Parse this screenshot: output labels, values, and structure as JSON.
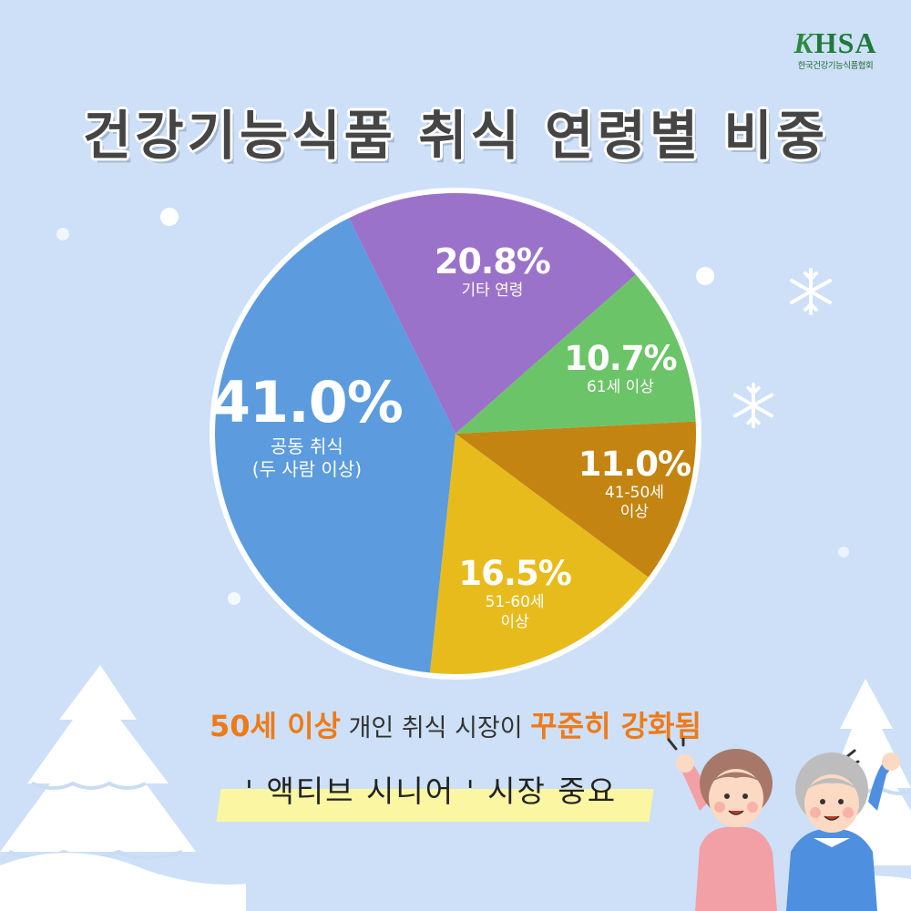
{
  "logo": {
    "main_k": "K",
    "main_rest": "HSA",
    "sub": "한국건강기능식품협회"
  },
  "title": "건강기능식품 취식 연령별 비중",
  "chart_data": {
    "type": "pie",
    "title": "건강기능식품 취식 연령별 비중",
    "slices": [
      {
        "label": "기타 연령",
        "value": 20.8,
        "display": "20.8%",
        "color": "#9b72c9"
      },
      {
        "label": "61세 이상",
        "value": 10.7,
        "display": "10.7%",
        "color": "#6cc468"
      },
      {
        "label": "41-50세 이상",
        "label_lines": [
          "41-50세",
          "이상"
        ],
        "value": 11.0,
        "display": "11.0%",
        "color": "#c38412"
      },
      {
        "label": "51-60세 이상",
        "label_lines": [
          "51-60세",
          "이상"
        ],
        "value": 16.5,
        "display": "16.5%",
        "color": "#e8bb1d"
      },
      {
        "label": "공동 취식 (두 사람 이상)",
        "label_lines": [
          "공동 취식",
          "(두 사람 이상)"
        ],
        "value": 41.0,
        "display": "41.0%",
        "color": "#5b9bde"
      }
    ]
  },
  "bottom": {
    "line1_hl1": "50세 이상",
    "line1_mid": " 개인 취식 시장이 ",
    "line1_hl2": "꾸준히 강화됨",
    "line2": "' 액티브 시니어 ' 시장 중요"
  }
}
